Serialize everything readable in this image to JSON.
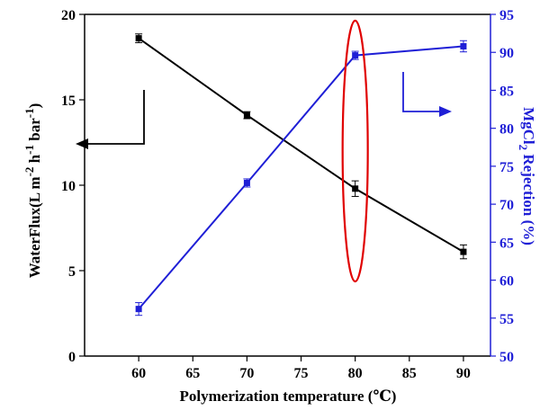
{
  "chart_data": {
    "type": "line",
    "title": "",
    "xlabel": "Polymerization temperature (℃)",
    "ylabel_left": "WaterFlux(L m-2 h-1 bar-1)",
    "ylabel_right": "MgCl2 Rejection (%)",
    "x": [
      60,
      70,
      80,
      90
    ],
    "xlim": [
      55,
      92.5
    ],
    "xticks": [
      60,
      65,
      70,
      75,
      80,
      85,
      90
    ],
    "ylim_left": [
      0,
      20
    ],
    "yticks_left": [
      0,
      5,
      10,
      15,
      20
    ],
    "ylim_right": [
      50,
      95
    ],
    "yticks_right": [
      50,
      55,
      60,
      65,
      70,
      75,
      80,
      85,
      90,
      95
    ],
    "series": [
      {
        "axis": "left",
        "color": "#000000",
        "values": [
          18.6,
          14.1,
          9.8,
          6.1
        ],
        "errors": [
          0.15,
          0.1,
          0.35,
          0.3
        ]
      },
      {
        "axis": "right",
        "color": "#1f1fd6",
        "values": [
          56.2,
          72.8,
          89.6,
          90.8
        ],
        "errors": [
          0.6,
          0.3,
          0.3,
          0.5
        ]
      }
    ],
    "annotations": [
      {
        "type": "ellipse",
        "color": "#e00000",
        "x": 80
      },
      {
        "type": "arrow",
        "direction": "left",
        "axis": "left",
        "color": "#000000"
      },
      {
        "type": "arrow",
        "direction": "right",
        "axis": "right",
        "color": "#1f1fd6"
      }
    ]
  }
}
